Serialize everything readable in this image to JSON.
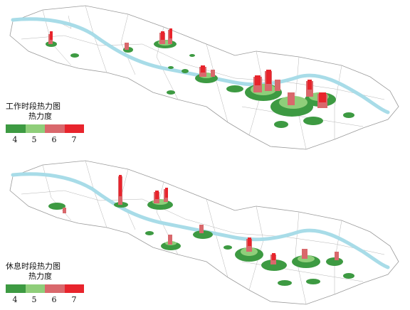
{
  "maps": [
    {
      "id": "work",
      "title": "工作时段热力图",
      "subtitle": "热力度",
      "legend": [
        {
          "label": "4",
          "color": "#3d9a42"
        },
        {
          "label": "5",
          "color": "#8fce7a"
        },
        {
          "label": "6",
          "color": "#d9686c"
        },
        {
          "label": "7",
          "color": "#e8242c"
        }
      ]
    },
    {
      "id": "rest",
      "title": "休息时段热力图",
      "subtitle": "热力度",
      "legend": [
        {
          "label": "4",
          "color": "#3d9a42"
        },
        {
          "label": "5",
          "color": "#8fce7a"
        },
        {
          "label": "6",
          "color": "#d9686c"
        },
        {
          "label": "7",
          "color": "#e8242c"
        }
      ]
    }
  ]
}
